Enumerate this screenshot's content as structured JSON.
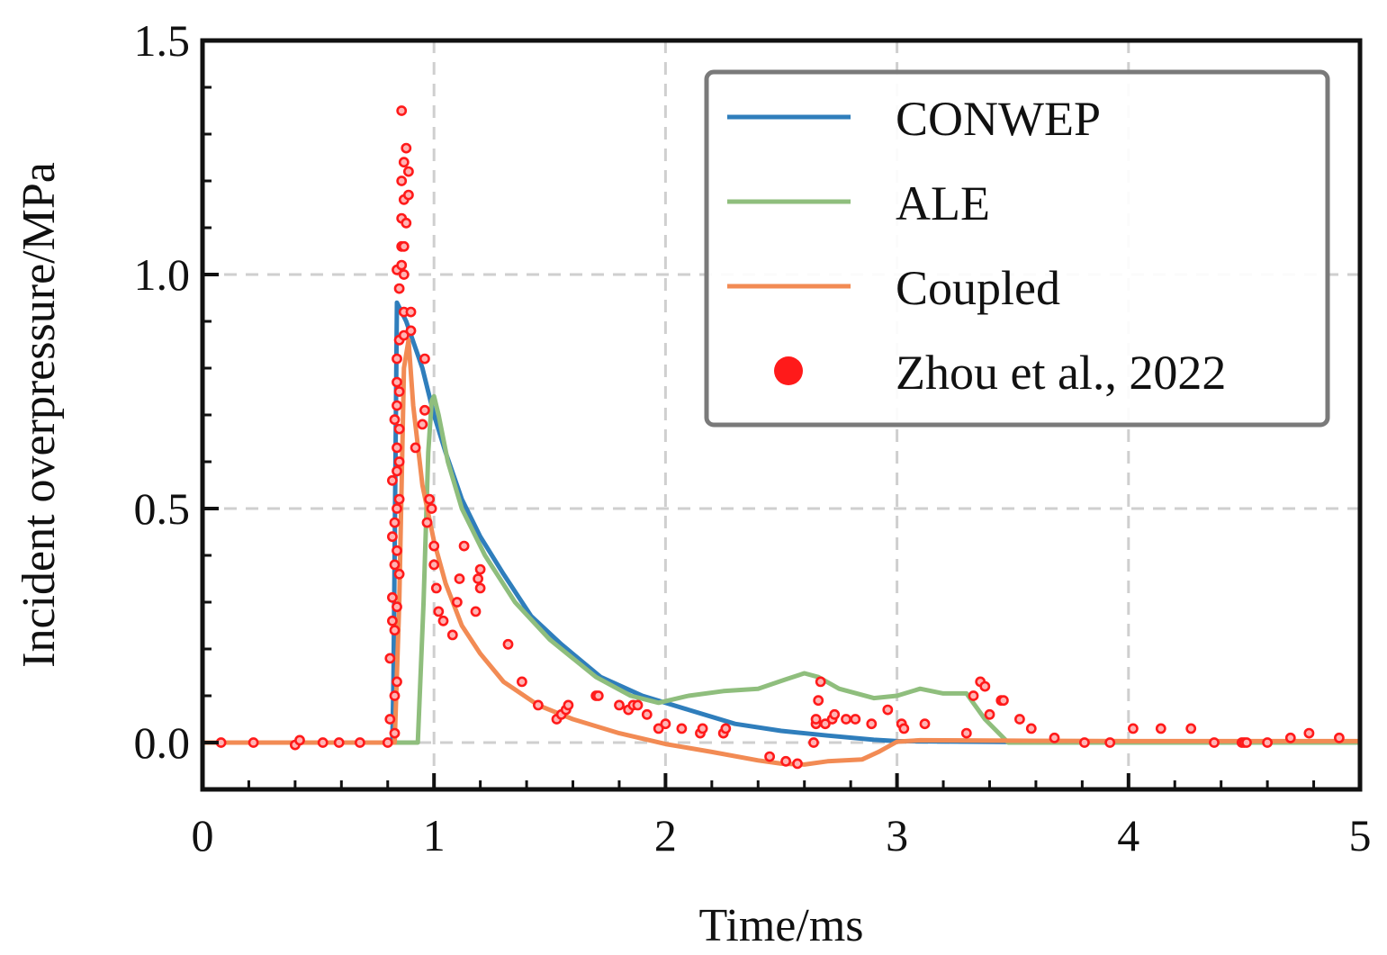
{
  "chart_data": {
    "type": "line",
    "title": "",
    "xlabel": "Time/ms",
    "ylabel": "Incident overpressure/MPa",
    "xlim": [
      0,
      5
    ],
    "ylim": [
      -0.1,
      1.5
    ],
    "xticks": [
      0,
      1,
      2,
      3,
      4,
      5
    ],
    "xtick_labels": [
      "0",
      "1",
      "2",
      "3",
      "4",
      "5"
    ],
    "yticks": [
      0.0,
      0.5,
      1.0,
      1.5
    ],
    "ytick_labels": [
      "0.0",
      "0.5",
      "1.0",
      "1.5"
    ],
    "grid": true,
    "legend_position": "top-right",
    "colors": {
      "conwep": "#2f7ebc",
      "ale": "#8fbe7d",
      "coupled": "#f28b54",
      "zhou": "#ff1a1a",
      "axis": "#111111",
      "grid": "#cfcfcf",
      "legend_border": "#7a7a7a"
    },
    "series": [
      {
        "name": "CONWEP",
        "kind": "line",
        "x": [
          0,
          0.82,
          0.825,
          0.84,
          0.88,
          0.95,
          1.0,
          1.05,
          1.12,
          1.2,
          1.3,
          1.42,
          1.55,
          1.72,
          1.9,
          2.1,
          2.3,
          2.5,
          2.7,
          2.9,
          3.0,
          3.3,
          3.6,
          4.0,
          5.0
        ],
        "y": [
          0,
          0,
          0.14,
          0.94,
          0.9,
          0.8,
          0.7,
          0.62,
          0.52,
          0.44,
          0.36,
          0.27,
          0.21,
          0.14,
          0.1,
          0.07,
          0.04,
          0.025,
          0.015,
          0.006,
          0.003,
          0.002,
          0.001,
          0.0,
          0.0
        ]
      },
      {
        "name": "ALE",
        "kind": "line",
        "x": [
          0,
          0.93,
          0.955,
          0.975,
          0.99,
          1.0,
          1.02,
          1.06,
          1.12,
          1.22,
          1.35,
          1.5,
          1.7,
          1.85,
          1.97,
          2.1,
          2.25,
          2.4,
          2.52,
          2.6,
          2.66,
          2.75,
          2.9,
          3.0,
          3.1,
          3.2,
          3.3,
          3.38,
          3.48,
          3.6,
          4.0,
          5.0
        ],
        "y": [
          0,
          0,
          0.3,
          0.62,
          0.73,
          0.74,
          0.7,
          0.6,
          0.5,
          0.4,
          0.3,
          0.22,
          0.14,
          0.1,
          0.085,
          0.1,
          0.11,
          0.115,
          0.135,
          0.148,
          0.14,
          0.115,
          0.095,
          0.1,
          0.115,
          0.105,
          0.105,
          0.05,
          0.0,
          0.0,
          0.0,
          0.0
        ]
      },
      {
        "name": "Coupled",
        "kind": "line",
        "x": [
          0,
          0.83,
          0.85,
          0.87,
          0.89,
          0.91,
          0.95,
          1.0,
          1.05,
          1.12,
          1.2,
          1.3,
          1.45,
          1.6,
          1.8,
          2.0,
          2.2,
          2.4,
          2.5,
          2.6,
          2.7,
          2.85,
          2.92,
          3.0,
          3.1,
          3.5,
          4.0,
          5.0
        ],
        "y": [
          0,
          0,
          0.3,
          0.8,
          0.86,
          0.72,
          0.55,
          0.43,
          0.34,
          0.25,
          0.19,
          0.13,
          0.08,
          0.05,
          0.02,
          -0.003,
          -0.02,
          -0.038,
          -0.045,
          -0.047,
          -0.04,
          -0.036,
          -0.02,
          0.002,
          0.005,
          0.004,
          0.003,
          0.003
        ]
      },
      {
        "name": "Zhou et al., 2022",
        "kind": "scatter",
        "x": [
          0.08,
          0.22,
          0.4,
          0.42,
          0.52,
          0.59,
          0.68,
          0.8,
          0.81,
          0.81,
          0.82,
          0.82,
          0.82,
          0.82,
          0.83,
          0.83,
          0.83,
          0.83,
          0.83,
          0.83,
          0.84,
          0.84,
          0.84,
          0.84,
          0.84,
          0.84,
          0.84,
          0.84,
          0.84,
          0.84,
          0.85,
          0.85,
          0.85,
          0.85,
          0.85,
          0.85,
          0.85,
          0.86,
          0.86,
          0.86,
          0.86,
          0.86,
          0.87,
          0.87,
          0.87,
          0.87,
          0.87,
          0.87,
          0.88,
          0.88,
          0.89,
          0.89,
          0.9,
          0.9,
          0.92,
          0.95,
          0.96,
          0.96,
          0.97,
          0.98,
          0.99,
          1.0,
          1.0,
          1.01,
          1.02,
          1.04,
          1.08,
          1.1,
          1.11,
          1.13,
          1.18,
          1.19,
          1.2,
          1.2,
          1.32,
          1.38,
          1.45,
          1.53,
          1.55,
          1.57,
          1.58,
          1.7,
          1.71,
          1.8,
          1.84,
          1.86,
          1.88,
          1.92,
          1.97,
          2.0,
          2.07,
          2.15,
          2.16,
          2.25,
          2.26,
          2.45,
          2.52,
          2.57,
          2.64,
          2.65,
          2.65,
          2.66,
          2.67,
          2.69,
          2.72,
          2.73,
          2.78,
          2.82,
          2.89,
          2.96,
          3.02,
          3.03,
          3.12,
          3.3,
          3.33,
          3.36,
          3.38,
          3.4,
          3.45,
          3.46,
          3.53,
          3.58,
          3.68,
          3.81,
          3.92,
          4.02,
          4.14,
          4.27,
          4.37,
          4.49,
          4.5,
          4.51,
          4.6,
          4.7,
          4.78,
          4.91
        ],
        "y": [
          0.0,
          0.0,
          -0.005,
          0.005,
          0.0,
          0.0,
          0.0,
          0.0,
          0.05,
          0.18,
          0.26,
          0.31,
          0.44,
          0.56,
          0.02,
          0.1,
          0.24,
          0.38,
          0.47,
          0.69,
          0.13,
          0.29,
          0.41,
          0.5,
          0.58,
          0.63,
          0.72,
          0.77,
          0.82,
          1.01,
          0.36,
          0.52,
          0.6,
          0.67,
          0.75,
          0.86,
          0.97,
          1.02,
          1.06,
          1.12,
          1.2,
          1.35,
          0.87,
          0.92,
          1.0,
          1.06,
          1.16,
          1.24,
          1.11,
          1.27,
          1.17,
          1.22,
          0.92,
          0.88,
          0.63,
          0.68,
          0.71,
          0.82,
          0.47,
          0.52,
          0.5,
          0.42,
          0.38,
          0.33,
          0.28,
          0.26,
          0.23,
          0.3,
          0.35,
          0.42,
          0.28,
          0.35,
          0.33,
          0.37,
          0.21,
          0.13,
          0.08,
          0.05,
          0.06,
          0.07,
          0.08,
          0.1,
          0.1,
          0.08,
          0.07,
          0.08,
          0.08,
          0.06,
          0.03,
          0.04,
          0.03,
          0.02,
          0.03,
          0.02,
          0.03,
          -0.03,
          -0.04,
          -0.045,
          0.0,
          0.04,
          0.05,
          0.09,
          0.13,
          0.04,
          0.05,
          0.06,
          0.05,
          0.05,
          0.04,
          0.07,
          0.04,
          0.03,
          0.04,
          0.02,
          0.1,
          0.13,
          0.12,
          0.06,
          0.09,
          0.09,
          0.05,
          0.03,
          0.01,
          0.0,
          0.0,
          0.03,
          0.03,
          0.03,
          0.0,
          0.0,
          0.0,
          0.0,
          0.0,
          0.01,
          0.02,
          0.01
        ]
      }
    ]
  }
}
